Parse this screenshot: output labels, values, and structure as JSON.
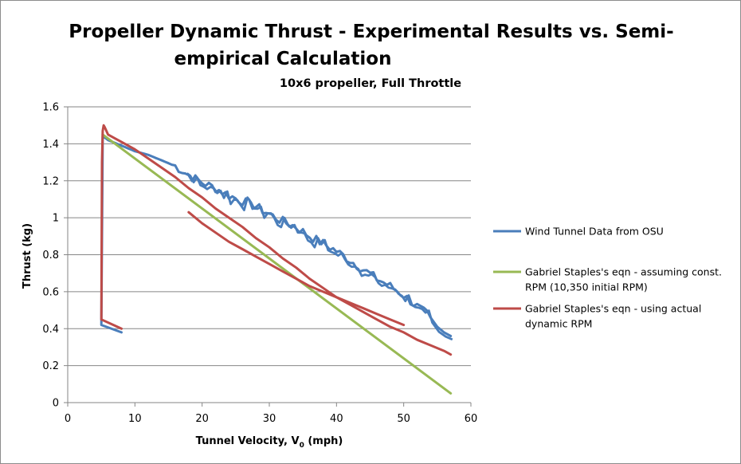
{
  "chart_data": {
    "type": "line",
    "title_line1": "Propeller Dynamic Thrust - Experimental Results vs. Semi-",
    "title_line2": "empirical Calculation",
    "subtitle": "10x6 propeller, Full Throttle",
    "xlabel_main": "Tunnel Velocity, V",
    "xlabel_sub": "0",
    "xlabel_tail": " (mph)",
    "ylabel": "Thrust (kg)",
    "xlim": [
      0,
      60
    ],
    "ylim": [
      0,
      1.6
    ],
    "x_ticks": [
      "0",
      "10",
      "20",
      "30",
      "40",
      "50",
      "60"
    ],
    "y_ticks": [
      "0",
      "0.2",
      "0.4",
      "0.6",
      "0.8",
      "1",
      "1.2",
      "1.4",
      "1.6"
    ],
    "grid": "horizontal",
    "legend_position": "right",
    "series": [
      {
        "name": "Wind Tunnel Data from OSU",
        "legend_lines": [
          "Wind Tunnel Data from OSU"
        ],
        "color": "#4a7ebb",
        "noisy": true,
        "x": [
          8,
          5,
          5.2,
          5.3,
          6,
          8,
          10,
          12,
          14,
          16,
          18,
          20,
          22,
          24,
          26,
          28,
          30,
          32,
          34,
          36,
          38,
          40,
          42,
          44,
          46,
          48,
          50,
          52,
          54,
          55,
          56,
          57
        ],
        "y": [
          0.38,
          0.42,
          1.44,
          1.44,
          1.42,
          1.39,
          1.36,
          1.34,
          1.31,
          1.28,
          1.23,
          1.19,
          1.16,
          1.12,
          1.09,
          1.06,
          1.02,
          0.98,
          0.95,
          0.9,
          0.86,
          0.82,
          0.77,
          0.72,
          0.67,
          0.63,
          0.58,
          0.52,
          0.46,
          0.41,
          0.38,
          0.36
        ]
      },
      {
        "name": "Gabriel Staples's eqn - assuming const. RPM (10,350 initial RPM)",
        "legend_lines": [
          "Gabriel Staples's eqn - assuming const.",
          "RPM (10,350 initial RPM)"
        ],
        "color": "#98b954",
        "noisy": false,
        "x": [
          5.2,
          57
        ],
        "y": [
          1.45,
          0.05
        ]
      },
      {
        "name": "Gabriel Staples's eqn - using actual dynamic RPM",
        "legend_lines": [
          "Gabriel Staples's eqn - using actual",
          "dynamic RPM"
        ],
        "color": "#be4b48",
        "noisy": false,
        "x": [
          8,
          5,
          5.1,
          5.2,
          5.35,
          5.5,
          6,
          7,
          8,
          10,
          12,
          14,
          16,
          18,
          20,
          22,
          24,
          26,
          28,
          30,
          32,
          34,
          36,
          38,
          40,
          42,
          44,
          46,
          48,
          50,
          52,
          54,
          56,
          57,
          null,
          18,
          20,
          22,
          24,
          26,
          28,
          30,
          32,
          34,
          36,
          38,
          40,
          42,
          44,
          46,
          48,
          50
        ],
        "y": [
          0.4,
          0.45,
          1.3,
          1.47,
          1.5,
          1.49,
          1.45,
          1.43,
          1.41,
          1.37,
          1.32,
          1.27,
          1.22,
          1.16,
          1.11,
          1.05,
          1.0,
          0.95,
          0.89,
          0.84,
          0.78,
          0.73,
          0.67,
          0.62,
          0.57,
          0.53,
          0.49,
          0.45,
          0.41,
          0.38,
          0.34,
          0.31,
          0.28,
          0.26,
          null,
          1.03,
          0.97,
          0.92,
          0.87,
          0.83,
          0.79,
          0.75,
          0.71,
          0.67,
          0.63,
          0.6,
          0.57,
          0.54,
          0.51,
          0.48,
          0.45,
          0.42
        ]
      }
    ]
  }
}
